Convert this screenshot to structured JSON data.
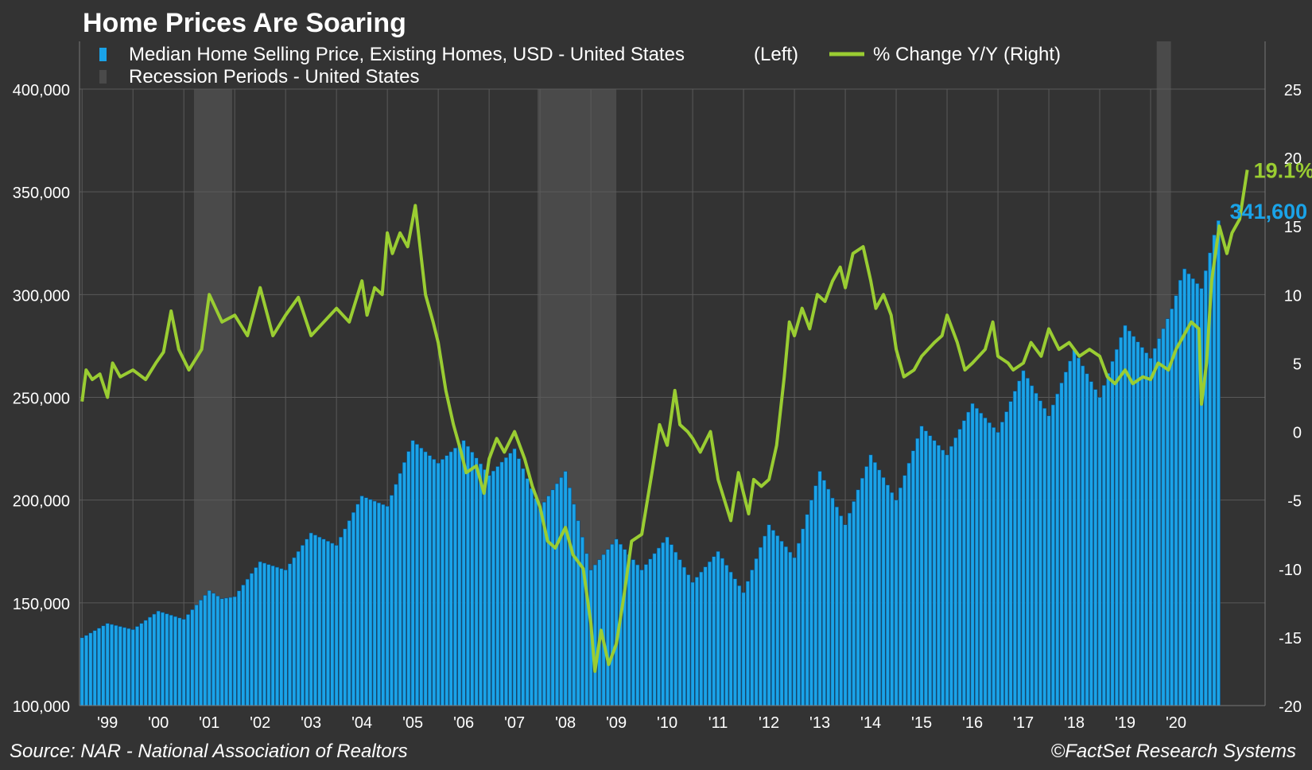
{
  "chart_data": {
    "type": "bar",
    "title": "Home Prices Are Soaring",
    "source": "Source: NAR - National Association of Realtors",
    "credit": "©FactSet Research Systems",
    "legend": {
      "placement": "top-left",
      "bar_label": "Median Home Selling Price, Existing Homes, USD - United States",
      "bar_axis_note": "(Left)",
      "line_label": "% Change Y/Y",
      "line_axis_note": "(Right)",
      "recession_label": "Recession Periods - United States"
    },
    "colors": {
      "background": "#333333",
      "bar": "#1aa3e8",
      "bar_edge": "#0a4f85",
      "line": "#9acd32",
      "recession": "#4a4a4a",
      "grid": "#5a5a5a",
      "text": "#ffffff"
    },
    "x_ticks": [
      "'99",
      "'00",
      "'01",
      "'02",
      "'03",
      "'04",
      "'05",
      "'06",
      "'07",
      "'08",
      "'09",
      "'10",
      "'11",
      "'12",
      "'13",
      "'14",
      "'15",
      "'16",
      "'17",
      "'18",
      "'19",
      "'20"
    ],
    "x_range": [
      1998.95,
      2022.25
    ],
    "y_left": {
      "range": [
        100000,
        400000
      ],
      "ticks": [
        "100,000",
        "150,000",
        "200,000",
        "250,000",
        "300,000",
        "350,000",
        "400,000"
      ]
    },
    "y_right": {
      "range": [
        -20,
        25
      ],
      "ticks": [
        "-20",
        "-15",
        "-10",
        "-5",
        "0",
        "5",
        "10",
        "15",
        "20",
        "25"
      ]
    },
    "grid": true,
    "recessions": [
      [
        2001.2,
        2001.95
      ],
      [
        2007.95,
        2009.5
      ],
      [
        2020.12,
        2020.4
      ]
    ],
    "annotations": {
      "line_last": "19.1%",
      "bar_last": "341,600"
    },
    "series": [
      {
        "name": "Median Home Selling Price, Existing Homes, USD - United States",
        "kind": "bar",
        "axis": "left",
        "points": [
          [
            1999.0,
            133000
          ],
          [
            1999.5,
            140000
          ],
          [
            2000.0,
            137000
          ],
          [
            2000.5,
            146000
          ],
          [
            2001.0,
            142000
          ],
          [
            2001.5,
            156000
          ],
          [
            2001.75,
            152000
          ],
          [
            2002.0,
            153000
          ],
          [
            2002.5,
            170000
          ],
          [
            2003.0,
            166000
          ],
          [
            2003.5,
            184000
          ],
          [
            2004.0,
            178000
          ],
          [
            2004.5,
            202000
          ],
          [
            2005.0,
            197000
          ],
          [
            2005.5,
            229000
          ],
          [
            2006.0,
            218000
          ],
          [
            2006.5,
            229000
          ],
          [
            2007.0,
            212000
          ],
          [
            2007.5,
            225000
          ],
          [
            2008.0,
            196000
          ],
          [
            2008.5,
            214000
          ],
          [
            2009.0,
            166000
          ],
          [
            2009.5,
            181000
          ],
          [
            2010.0,
            166000
          ],
          [
            2010.5,
            182000
          ],
          [
            2011.0,
            160000
          ],
          [
            2011.5,
            175000
          ],
          [
            2012.0,
            155000
          ],
          [
            2012.5,
            188000
          ],
          [
            2013.0,
            172000
          ],
          [
            2013.5,
            214000
          ],
          [
            2014.0,
            188000
          ],
          [
            2014.5,
            222000
          ],
          [
            2015.0,
            200000
          ],
          [
            2015.5,
            236000
          ],
          [
            2016.0,
            222000
          ],
          [
            2016.5,
            247000
          ],
          [
            2017.0,
            233000
          ],
          [
            2017.5,
            263000
          ],
          [
            2018.0,
            241000
          ],
          [
            2018.5,
            273000
          ],
          [
            2019.0,
            250000
          ],
          [
            2019.5,
            285000
          ],
          [
            2020.0,
            269000
          ],
          [
            2020.45,
            295000
          ],
          [
            2020.65,
            313000
          ],
          [
            2021.0,
            303000
          ],
          [
            2021.25,
            329000
          ],
          [
            2021.4,
            341600
          ]
        ]
      },
      {
        "name": "% Change Y/Y",
        "kind": "line",
        "axis": "right",
        "points": [
          [
            1999.0,
            2.2
          ],
          [
            1999.08,
            4.5
          ],
          [
            1999.2,
            3.8
          ],
          [
            1999.35,
            4.2
          ],
          [
            1999.5,
            2.5
          ],
          [
            1999.6,
            5.0
          ],
          [
            1999.75,
            4.0
          ],
          [
            2000.0,
            4.5
          ],
          [
            2000.25,
            3.8
          ],
          [
            2000.45,
            5.0
          ],
          [
            2000.6,
            5.8
          ],
          [
            2000.75,
            8.8
          ],
          [
            2000.9,
            6.0
          ],
          [
            2001.1,
            4.5
          ],
          [
            2001.35,
            6.0
          ],
          [
            2001.5,
            10.0
          ],
          [
            2001.75,
            8.0
          ],
          [
            2002.0,
            8.5
          ],
          [
            2002.25,
            7.0
          ],
          [
            2002.5,
            10.5
          ],
          [
            2002.75,
            7.0
          ],
          [
            2003.0,
            8.5
          ],
          [
            2003.25,
            9.8
          ],
          [
            2003.5,
            7.0
          ],
          [
            2003.75,
            8.0
          ],
          [
            2004.0,
            9.0
          ],
          [
            2004.25,
            8.0
          ],
          [
            2004.5,
            11.0
          ],
          [
            2004.6,
            8.5
          ],
          [
            2004.75,
            10.5
          ],
          [
            2004.9,
            10.0
          ],
          [
            2005.0,
            14.5
          ],
          [
            2005.1,
            13.0
          ],
          [
            2005.25,
            14.5
          ],
          [
            2005.4,
            13.5
          ],
          [
            2005.55,
            16.5
          ],
          [
            2005.75,
            10.0
          ],
          [
            2005.9,
            8.0
          ],
          [
            2006.0,
            6.5
          ],
          [
            2006.15,
            3.0
          ],
          [
            2006.3,
            0.5
          ],
          [
            2006.45,
            -1.5
          ],
          [
            2006.55,
            -3.0
          ],
          [
            2006.75,
            -2.5
          ],
          [
            2006.9,
            -4.5
          ],
          [
            2007.0,
            -2.0
          ],
          [
            2007.15,
            -0.5
          ],
          [
            2007.3,
            -1.5
          ],
          [
            2007.5,
            0.0
          ],
          [
            2007.7,
            -2.0
          ],
          [
            2007.85,
            -4.0
          ],
          [
            2008.0,
            -5.5
          ],
          [
            2008.15,
            -8.0
          ],
          [
            2008.3,
            -8.5
          ],
          [
            2008.5,
            -7.0
          ],
          [
            2008.65,
            -9.0
          ],
          [
            2008.85,
            -10.0
          ],
          [
            2009.0,
            -14.0
          ],
          [
            2009.08,
            -17.5
          ],
          [
            2009.2,
            -14.5
          ],
          [
            2009.35,
            -17.0
          ],
          [
            2009.5,
            -15.5
          ],
          [
            2009.65,
            -12.0
          ],
          [
            2009.8,
            -8.0
          ],
          [
            2010.0,
            -7.5
          ],
          [
            2010.2,
            -3.0
          ],
          [
            2010.35,
            0.5
          ],
          [
            2010.5,
            -1.0
          ],
          [
            2010.65,
            3.0
          ],
          [
            2010.75,
            0.5
          ],
          [
            2010.9,
            0.0
          ],
          [
            2011.0,
            -0.5
          ],
          [
            2011.15,
            -1.5
          ],
          [
            2011.35,
            0.0
          ],
          [
            2011.5,
            -3.5
          ],
          [
            2011.75,
            -6.5
          ],
          [
            2011.9,
            -3.0
          ],
          [
            2012.0,
            -4.5
          ],
          [
            2012.1,
            -6.0
          ],
          [
            2012.2,
            -3.5
          ],
          [
            2012.35,
            -4.0
          ],
          [
            2012.5,
            -3.5
          ],
          [
            2012.65,
            -1.0
          ],
          [
            2012.8,
            4.0
          ],
          [
            2012.9,
            8.0
          ],
          [
            2013.0,
            7.0
          ],
          [
            2013.15,
            9.0
          ],
          [
            2013.3,
            7.5
          ],
          [
            2013.45,
            10.0
          ],
          [
            2013.6,
            9.5
          ],
          [
            2013.75,
            11.0
          ],
          [
            2013.9,
            12.0
          ],
          [
            2014.0,
            10.5
          ],
          [
            2014.15,
            13.0
          ],
          [
            2014.35,
            13.5
          ],
          [
            2014.5,
            11.0
          ],
          [
            2014.6,
            9.0
          ],
          [
            2014.75,
            10.0
          ],
          [
            2014.9,
            8.5
          ],
          [
            2015.0,
            6.0
          ],
          [
            2015.15,
            4.0
          ],
          [
            2015.35,
            4.5
          ],
          [
            2015.5,
            5.5
          ],
          [
            2015.75,
            6.5
          ],
          [
            2015.9,
            7.0
          ],
          [
            2016.0,
            8.5
          ],
          [
            2016.2,
            6.5
          ],
          [
            2016.35,
            4.5
          ],
          [
            2016.5,
            5.0
          ],
          [
            2016.75,
            6.0
          ],
          [
            2016.9,
            8.0
          ],
          [
            2017.0,
            5.5
          ],
          [
            2017.2,
            5.0
          ],
          [
            2017.3,
            4.5
          ],
          [
            2017.5,
            5.0
          ],
          [
            2017.65,
            6.5
          ],
          [
            2017.85,
            5.5
          ],
          [
            2018.0,
            7.5
          ],
          [
            2018.2,
            6.0
          ],
          [
            2018.4,
            6.5
          ],
          [
            2018.6,
            5.5
          ],
          [
            2018.8,
            6.0
          ],
          [
            2019.0,
            5.5
          ],
          [
            2019.15,
            4.0
          ],
          [
            2019.3,
            3.5
          ],
          [
            2019.5,
            4.5
          ],
          [
            2019.65,
            3.5
          ],
          [
            2019.85,
            4.0
          ],
          [
            2020.0,
            3.8
          ],
          [
            2020.15,
            5.0
          ],
          [
            2020.35,
            4.5
          ],
          [
            2020.5,
            6.0
          ],
          [
            2020.65,
            7.0
          ],
          [
            2020.8,
            8.0
          ],
          [
            2020.95,
            7.5
          ],
          [
            2021.0,
            2.0
          ],
          [
            2021.1,
            5.0
          ],
          [
            2021.2,
            11.0
          ],
          [
            2021.35,
            15.0
          ],
          [
            2021.5,
            13.0
          ],
          [
            2021.6,
            14.5
          ],
          [
            2021.75,
            15.5
          ],
          [
            2021.9,
            19.1
          ]
        ]
      }
    ]
  }
}
